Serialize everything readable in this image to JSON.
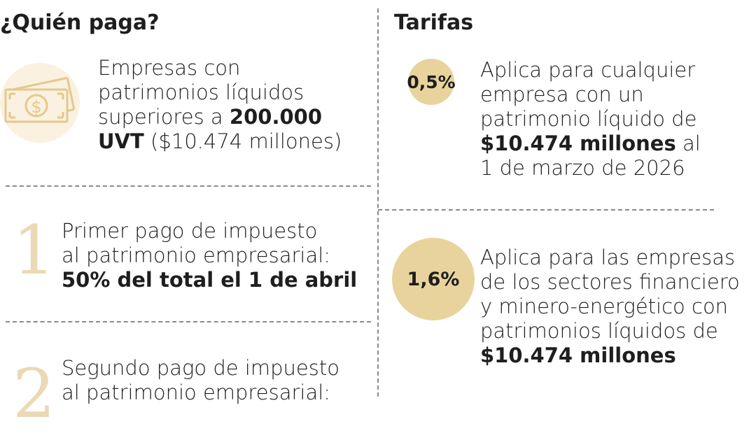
{
  "left": {
    "title": "¿Quién paga?",
    "who": {
      "line1": "Empresas con",
      "line2": "patrimonios líquidos",
      "line3_pre": "superiores a ",
      "line3_bold": "200.000",
      "line4_bold": "UVT",
      "line4_rest": " ($10.474 millones)"
    },
    "payment1": {
      "number": "1",
      "line1": "Primer pago de impuesto",
      "line2": "al patrimonio empresarial:",
      "line3_bold": "50% del total el 1 de abril"
    },
    "payment2": {
      "number": "2",
      "line1": "Segundo pago de impuesto",
      "line2": "al patrimonio empresarial:"
    }
  },
  "right": {
    "title": "Tarifas",
    "rate1": {
      "value": "0,5%",
      "line1": "Aplica para cualquier",
      "line2": "empresa con un",
      "line3": "patrimonio líquido de",
      "line4_bold": "$10.474 millones",
      "line4_rest": " al",
      "line5": "1 de marzo de 2026"
    },
    "rate2": {
      "value": "1,6%",
      "line1": "Aplica para las empresas",
      "line2": "de los sectores financiero",
      "line3": "y minero-energético con",
      "line4": "patrimonios líquidos de",
      "line5_bold": "$10.474 millones"
    }
  },
  "colors": {
    "gold": "#e9d39d",
    "pale_gold": "#ead9b4",
    "icon_bg": "#fbf1e0",
    "dash": "#8a8a8a"
  },
  "icons": {
    "money": "money-bill-icon"
  }
}
